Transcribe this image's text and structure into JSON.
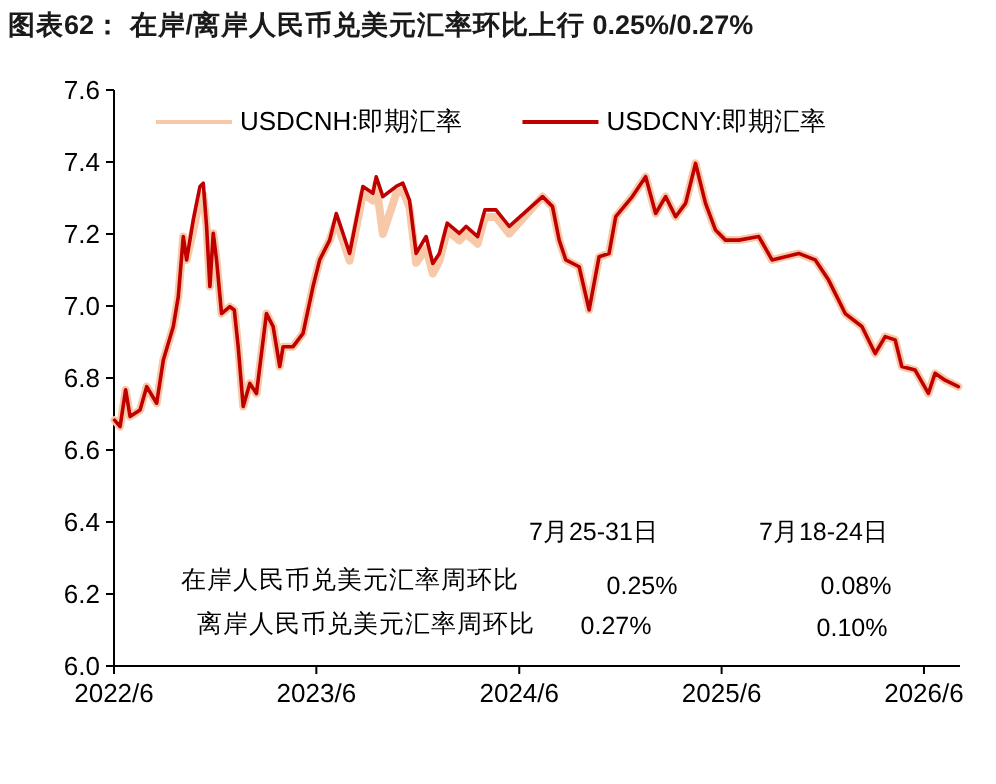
{
  "chart_data": {
    "type": "line",
    "title": "图表62：  在岸/离岸人民币兑美元汇率环比上行 0.25%/0.27%",
    "x": [
      "2022-06-02",
      "2022-06-12",
      "2022-06-22",
      "2022-06-30",
      "2022-07-18",
      "2022-07-30",
      "2022-08-17",
      "2022-08-29",
      "2022-09-16",
      "2022-09-25",
      "2022-10-04",
      "2022-10-10",
      "2022-10-22",
      "2022-11-03",
      "2022-11-09",
      "2022-11-15",
      "2022-11-21",
      "2022-11-27",
      "2022-12-03",
      "2022-12-12",
      "2022-12-27",
      "2023-01-04",
      "2023-01-11",
      "2023-01-20",
      "2023-02-01",
      "2023-02-13",
      "2023-03-03",
      "2023-03-15",
      "2023-03-27",
      "2023-04-02",
      "2023-04-20",
      "2023-05-08",
      "2023-05-26",
      "2023-06-07",
      "2023-06-25",
      "2023-07-07",
      "2023-07-19",
      "2023-07-31",
      "2023-08-12",
      "2023-08-24",
      "2023-09-11",
      "2023-09-17",
      "2023-09-29",
      "2023-10-23",
      "2023-11-04",
      "2023-11-16",
      "2023-11-28",
      "2023-12-16",
      "2023-12-28",
      "2024-01-09",
      "2024-01-23",
      "2024-02-14",
      "2024-02-26",
      "2024-03-18",
      "2024-03-31",
      "2024-04-20",
      "2024-05-14",
      "2024-07-13",
      "2024-07-31",
      "2024-08-12",
      "2024-08-24",
      "2024-09-17",
      "2024-10-05",
      "2024-10-23",
      "2024-11-10",
      "2024-11-22",
      "2024-12-22",
      "2025-01-15",
      "2025-02-02",
      "2025-02-20",
      "2025-03-10",
      "2025-03-28",
      "2025-04-15",
      "2025-05-03",
      "2025-05-21",
      "2025-06-08",
      "2025-07-02",
      "2025-08-07",
      "2025-08-31",
      "2025-09-24",
      "2025-10-18",
      "2025-11-17",
      "2025-12-11",
      "2026-01-10",
      "2026-02-09",
      "2026-03-05",
      "2026-03-23",
      "2026-04-10",
      "2026-04-22",
      "2026-05-16",
      "2026-06-09",
      "2026-06-21",
      "2026-07-09",
      "2026-08-02"
    ],
    "xlim": [
      "2022-06-01",
      "2026-08-05"
    ],
    "xticks": [
      {
        "value": "2022-06-01",
        "label": "2022/6"
      },
      {
        "value": "2023-06-01",
        "label": "2023/6"
      },
      {
        "value": "2024-06-01",
        "label": "2024/6"
      },
      {
        "value": "2025-06-01",
        "label": "2025/6"
      },
      {
        "value": "2026-06-01",
        "label": "2026/6"
      }
    ],
    "ylim": [
      6.0,
      7.6
    ],
    "yticks": [
      {
        "value": 6.0,
        "label": "6.0"
      },
      6.2,
      6.4,
      6.6,
      6.8,
      {
        "value": 7.0,
        "label": "7.0"
      },
      7.2,
      7.4,
      7.6
    ],
    "legend": "top",
    "series": [
      {
        "name": "USDCNH:即期汇率",
        "color": "#f7c9a8",
        "values": [
          6.683,
          6.665,
          6.767,
          6.693,
          6.711,
          6.776,
          6.73,
          6.85,
          6.943,
          7.026,
          7.193,
          7.128,
          7.21,
          7.3,
          7.31,
          7.221,
          7.054,
          7.202,
          7.128,
          6.979,
          6.998,
          6.989,
          6.887,
          6.721,
          6.785,
          6.757,
          6.979,
          6.943,
          6.832,
          6.887,
          6.887,
          6.924,
          7.054,
          7.128,
          7.183,
          7.237,
          7.182,
          7.126,
          7.219,
          7.312,
          7.293,
          7.339,
          7.2,
          7.312,
          7.321,
          7.274,
          7.12,
          7.16,
          7.09,
          7.126,
          7.21,
          7.182,
          7.201,
          7.173,
          7.247,
          7.247,
          7.201,
          7.304,
          7.276,
          7.183,
          7.128,
          7.109,
          6.989,
          7.137,
          7.146,
          7.248,
          7.304,
          7.359,
          7.257,
          7.304,
          7.248,
          7.285,
          7.396,
          7.285,
          7.211,
          7.183,
          7.183,
          7.193,
          7.128,
          7.137,
          7.146,
          7.128,
          7.072,
          6.979,
          6.943,
          6.868,
          6.915,
          6.906,
          6.832,
          6.822,
          6.757,
          6.813,
          6.794,
          6.776
        ]
      },
      {
        "name": "USDCNY:即期汇率",
        "color": "#c00000",
        "values": [
          6.683,
          6.665,
          6.767,
          6.693,
          6.711,
          6.776,
          6.73,
          6.85,
          6.943,
          7.026,
          7.193,
          7.128,
          7.239,
          7.332,
          7.341,
          7.221,
          7.054,
          7.202,
          7.128,
          6.979,
          6.998,
          6.989,
          6.887,
          6.721,
          6.785,
          6.757,
          6.979,
          6.943,
          6.832,
          6.887,
          6.887,
          6.924,
          7.054,
          7.128,
          7.183,
          7.257,
          7.202,
          7.146,
          7.239,
          7.332,
          7.313,
          7.359,
          7.304,
          7.332,
          7.341,
          7.294,
          7.146,
          7.193,
          7.118,
          7.146,
          7.23,
          7.202,
          7.221,
          7.193,
          7.267,
          7.267,
          7.221,
          7.304,
          7.276,
          7.183,
          7.128,
          7.109,
          6.989,
          7.137,
          7.146,
          7.248,
          7.304,
          7.359,
          7.257,
          7.304,
          7.248,
          7.285,
          7.396,
          7.285,
          7.211,
          7.183,
          7.183,
          7.193,
          7.128,
          7.137,
          7.146,
          7.128,
          7.072,
          6.979,
          6.943,
          6.868,
          6.915,
          6.906,
          6.832,
          6.822,
          6.757,
          6.813,
          6.794,
          6.776
        ]
      }
    ],
    "annotations": [
      "7月25-31日",
      "7月18-24日",
      "在岸人民币兑美元汇率周环比",
      "0.25%",
      "0.08%",
      "离岸人民币兑美元汇率周环比",
      "0.27%",
      "0.10%"
    ]
  }
}
